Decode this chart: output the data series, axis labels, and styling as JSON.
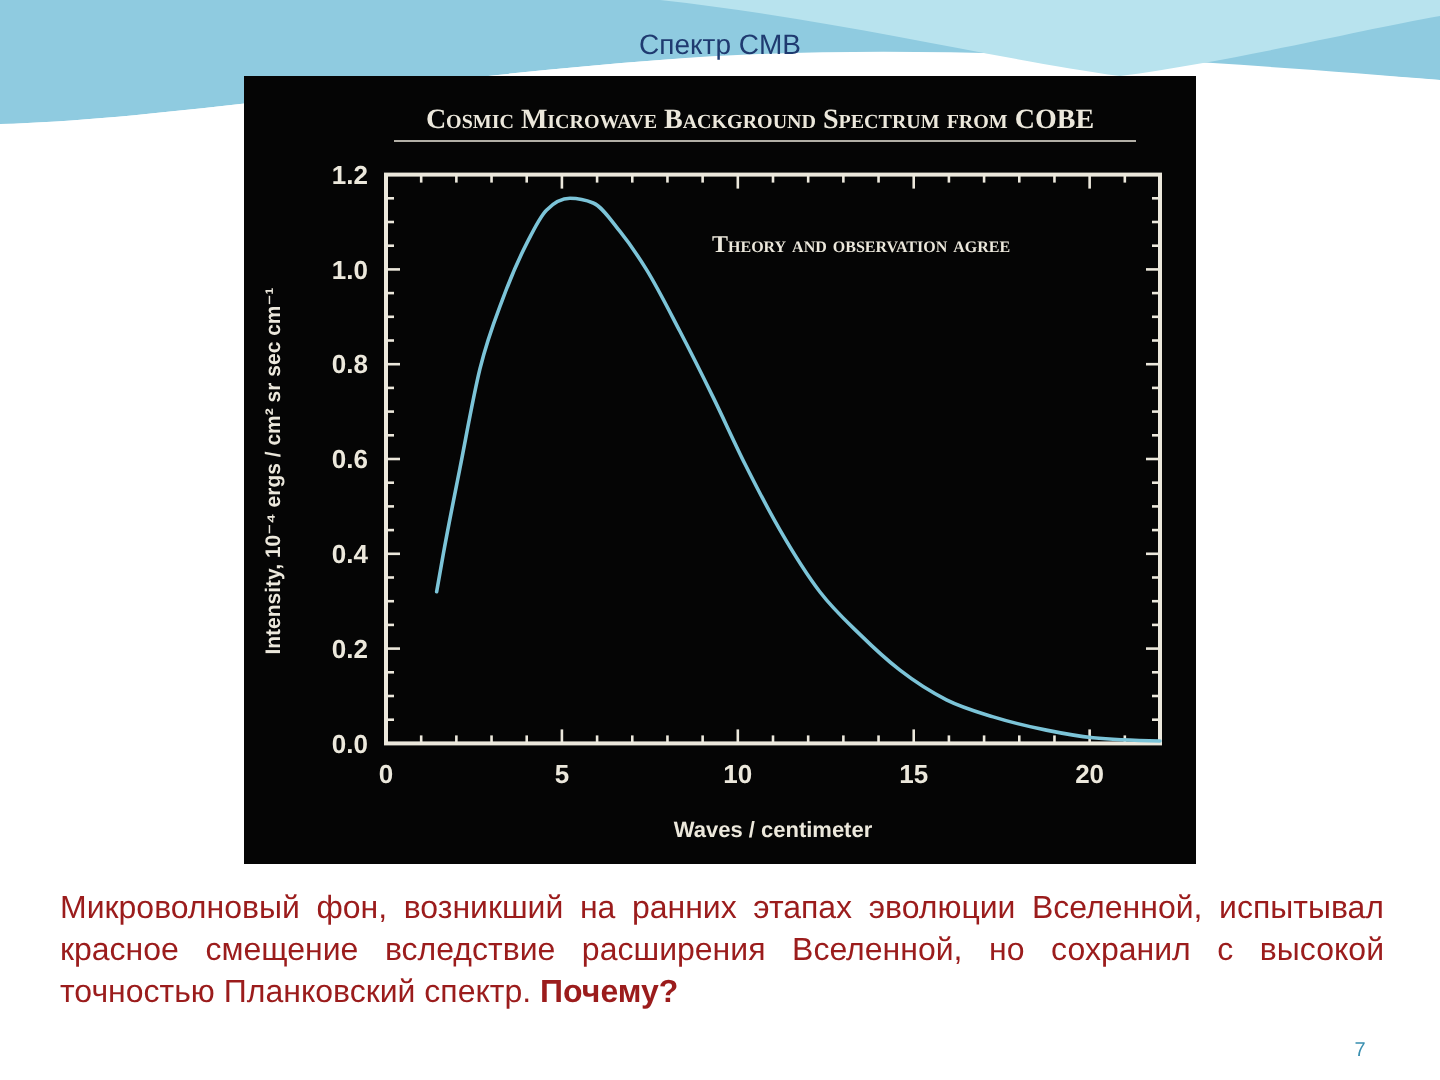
{
  "chart_data": {
    "type": "line",
    "title": "Спектр CMB",
    "subtitle": "Cosmic Microwave Background Spectrum from COBE",
    "xlabel": "Waves / centimeter",
    "ylabel": "Intensity, 10⁻⁴ ergs / cm² sr sec cm⁻¹",
    "annotations": [
      "Theory and observation agree",
      "Микроволновый фон, возникший на ранних этапах эволюции Вселенной, испытывал красное смещение вследствие расширения Вселенной, но сохранил с высокой точностью Планковский спектр.",
      "Почему?",
      "7"
    ],
    "x": [
      1.44,
      1.63,
      2.1,
      2.67,
      3.33,
      4.0,
      4.56,
      5.23,
      5.89,
      6.65,
      7.4,
      8.35,
      9.3,
      10.2,
      11.2,
      12.33,
      13.47,
      14.6,
      15.93,
      17.26,
      18.77,
      20.1,
      22.0
    ],
    "values": [
      0.32,
      0.4,
      0.58,
      0.79,
      0.94,
      1.055,
      1.125,
      1.15,
      1.14,
      1.08,
      1.0,
      0.87,
      0.73,
      0.59,
      0.45,
      0.32,
      0.23,
      0.155,
      0.092,
      0.056,
      0.028,
      0.012,
      0.005
    ],
    "color": "#7cc4d8",
    "xlim": [
      0,
      22
    ],
    "ylim": [
      0,
      1.2
    ],
    "xticks": [
      0,
      {
        "value": 1,
        "label": null
      },
      {
        "value": 2,
        "label": null
      },
      {
        "value": 3,
        "label": null
      },
      {
        "value": 4,
        "label": null
      },
      5,
      {
        "value": 6,
        "label": null
      },
      {
        "value": 7,
        "label": null
      },
      {
        "value": 8,
        "label": null
      },
      {
        "value": 9,
        "label": null
      },
      10,
      {
        "value": 11,
        "label": null
      },
      {
        "value": 12,
        "label": null
      },
      {
        "value": 13,
        "label": null
      },
      {
        "value": 14,
        "label": null
      },
      15,
      {
        "value": 16,
        "label": null
      },
      {
        "value": 17,
        "label": null
      },
      {
        "value": 18,
        "label": null
      },
      {
        "value": 19,
        "label": null
      },
      20,
      {
        "value": 21,
        "label": null
      }
    ],
    "yticks": [
      {
        "value": 0,
        "label": "0.0"
      },
      {
        "value": 0.05,
        "label": null
      },
      {
        "value": 0.1,
        "label": null
      },
      {
        "value": 0.15,
        "label": null
      },
      0.2,
      {
        "value": 0.25,
        "label": null
      },
      {
        "value": 0.3,
        "label": null
      },
      {
        "value": 0.35,
        "label": null
      },
      0.4,
      {
        "value": 0.45,
        "label": null
      },
      {
        "value": 0.5,
        "label": null
      },
      {
        "value": 0.55,
        "label": null
      },
      0.6,
      {
        "value": 0.65,
        "label": null
      },
      {
        "value": 0.7,
        "label": null
      },
      {
        "value": 0.75,
        "label": null
      },
      0.8,
      {
        "value": 0.85,
        "label": null
      },
      {
        "value": 0.9,
        "label": null
      },
      {
        "value": 0.95,
        "label": null
      },
      {
        "value": 1,
        "label": "1.0"
      },
      {
        "value": 1.05,
        "label": null
      },
      {
        "value": 1.1,
        "label": null
      },
      {
        "value": 1.15,
        "label": null
      },
      1.2
    ]
  }
}
